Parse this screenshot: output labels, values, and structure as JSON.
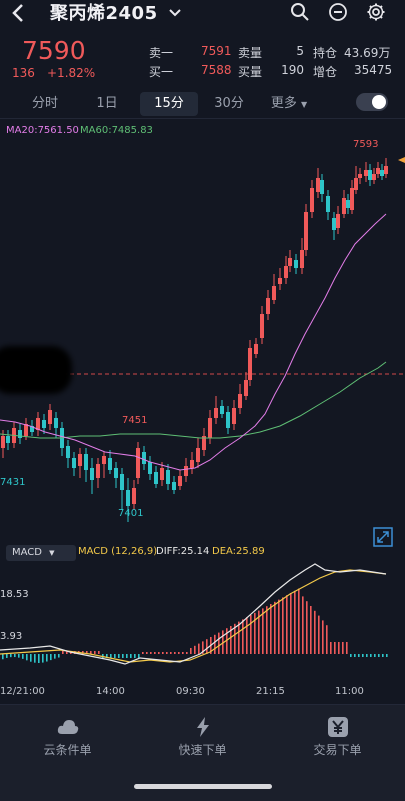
{
  "header": {
    "title": "聚丙烯2405",
    "back_icon": "chevron-left-icon",
    "icons": [
      "search-icon",
      "minus-circle-icon",
      "gear-icon"
    ]
  },
  "quote": {
    "last": "7590",
    "change": "136",
    "change_pct": "+1.82%",
    "ask_label": "卖一",
    "ask_price": "7591",
    "ask_vol_label": "卖量",
    "ask_vol": "5",
    "oi_label": "持仓",
    "oi": "43.69万",
    "bid_label": "买一",
    "bid_price": "7588",
    "bid_vol_label": "买量",
    "bid_vol": "190",
    "oi_chg_label": "增仓",
    "oi_chg": "35475"
  },
  "tabs": [
    "分时",
    "1日",
    "15分",
    "30分",
    "更多"
  ],
  "active_tab": "15分",
  "chart": {
    "ma20_label": "MA20:7561.50",
    "ma60_label": "MA60:7485.83",
    "high_label": "7593",
    "mark_7451": "7451",
    "mark_7431": "7431",
    "mark_7401": "7401",
    "macd_selector": "MACD",
    "macd_params": "MACD (12,26,9)",
    "diff": "DIFF:25.14",
    "dea": "DEA:25.89",
    "macd_top": "18.53",
    "macd_mid": "3.93",
    "time_labels": [
      "12/21:00",
      "14:00",
      "09:30",
      "21:15",
      "11:00"
    ],
    "colors": {
      "up": "#f05a5a",
      "down": "#2ec5c9",
      "ma20": "#e27de8",
      "ma60": "#5fbf75",
      "dea": "#f3c94a",
      "diff": "#e8e8e8"
    }
  },
  "bottom_nav": [
    {
      "label": "云条件单",
      "icon": "cloud-icon"
    },
    {
      "label": "快速下单",
      "icon": "lightning-icon"
    },
    {
      "label": "交易下单",
      "icon": "yen-icon"
    }
  ]
}
